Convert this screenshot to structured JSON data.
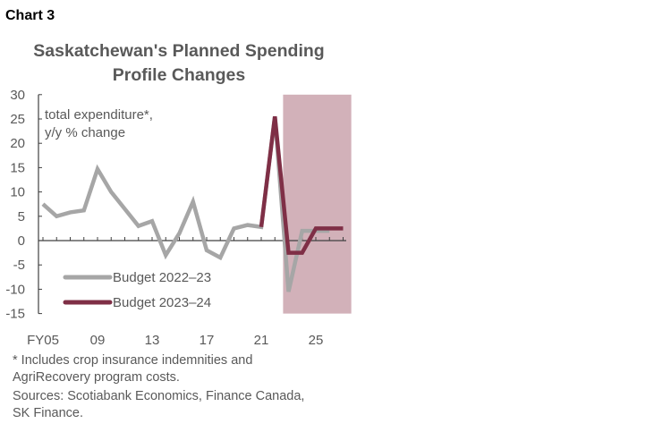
{
  "label": "Chart 3",
  "chart_data": {
    "type": "line",
    "title": "Saskatchewan's Planned Spending Profile Changes",
    "title_lines": [
      "Saskatchewan's Planned Spending",
      "Profile Changes"
    ],
    "ylabel_lines": [
      "total expenditure*,",
      "y/y % change"
    ],
    "ylim": [
      -15,
      30
    ],
    "yticks": [
      30,
      25,
      20,
      15,
      10,
      5,
      0,
      -5,
      -10,
      -15
    ],
    "xticks": [
      {
        "year": 2005,
        "label": "FY05"
      },
      {
        "year": 2009,
        "label": "09"
      },
      {
        "year": 2013,
        "label": "13"
      },
      {
        "year": 2017,
        "label": "17"
      },
      {
        "year": 2021,
        "label": "21"
      },
      {
        "year": 2025,
        "label": "25"
      }
    ],
    "xlim": [
      2005,
      2027
    ],
    "shaded_region": {
      "from": 2022.6,
      "to": 2027.6,
      "color": "#d2b1b9"
    },
    "legend_position": "bottom-left",
    "grid": false,
    "series": [
      {
        "name": "Budget 2022–23",
        "color": "#a6a6a6",
        "x": [
          2005,
          2006,
          2007,
          2008,
          2009,
          2010,
          2011,
          2012,
          2013,
          2014,
          2015,
          2016,
          2017,
          2018,
          2019,
          2020,
          2021,
          2022,
          2023,
          2024,
          2025,
          2026
        ],
        "y": [
          7.5,
          5,
          5.8,
          6.2,
          14.7,
          10,
          6.5,
          3,
          4,
          -3,
          1.5,
          8,
          -2,
          -3.5,
          2.5,
          3.2,
          2.8,
          25.5,
          -10.5,
          2,
          2,
          2
        ]
      },
      {
        "name": "Budget 2023–24",
        "color": "#7f2f46",
        "x": [
          2021,
          2022,
          2023,
          2024,
          2025,
          2026,
          2027
        ],
        "y": [
          2.8,
          25.5,
          -2.5,
          -2.5,
          2.5,
          2.5,
          2.5
        ]
      }
    ]
  },
  "footnotes": [
    "* Includes crop insurance indemnities and",
    "AgriRecovery program costs.",
    "Sources: Scotiabank Economics, Finance Canada,",
    "SK Finance."
  ]
}
